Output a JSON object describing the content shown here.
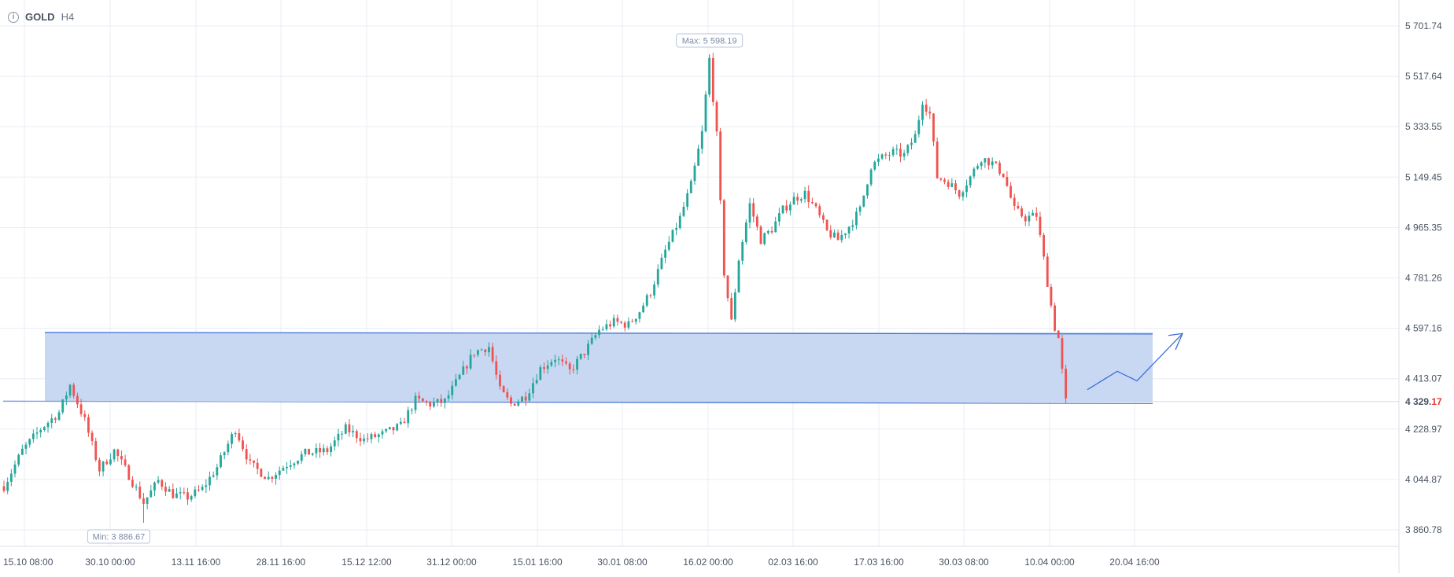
{
  "header": {
    "symbol": "GOLD",
    "timeframe": "H4",
    "info_icon": "info-icon"
  },
  "colors": {
    "up": "#26a69a",
    "down": "#ef5350",
    "grid": "#e9edf5",
    "zone_fill": "#c5d6f2",
    "zone_line": "#3a6fd6",
    "arrow": "#3a6fd6",
    "axis_text": "#4a5363",
    "current_price": "#e53935"
  },
  "chart_data": {
    "type": "candlestick",
    "instrument": "GOLD",
    "timeframe": "H4",
    "ylim": [
      3800,
      5780
    ],
    "y_ticks": [
      "5 701.74",
      "5 517.64",
      "5 333.55",
      "5 149.45",
      "4 965.35",
      "4 781.26",
      "4 597.16",
      "4 413.07",
      "4 228.97",
      "4 044.87",
      "3 860.78"
    ],
    "y_tick_values": [
      5701.74,
      5517.64,
      5333.55,
      5149.45,
      4965.35,
      4781.26,
      4597.16,
      4413.07,
      4228.97,
      4044.87,
      3860.78
    ],
    "x_ticks": [
      "15.10 08:00",
      "30.10 00:00",
      "13.11 16:00",
      "28.11 16:00",
      "15.12 12:00",
      "31.12 00:00",
      "15.01 16:00",
      "30.01 08:00",
      "16.02 00:00",
      "02.03 16:00",
      "17.03 16:00",
      "30.03 08:00",
      "10.04 00:00",
      "20.04 16:00"
    ],
    "current_price": {
      "value": 4329.17,
      "label_main": "4 329.",
      "label_tail": "17"
    },
    "max_label": "Max: 5 598.19",
    "max_value": 5598.19,
    "min_label": "Min: 3 886.67",
    "min_value": 3886.67,
    "zone": {
      "top": 4582,
      "bottom": 4328
    },
    "path_anchors": [
      [
        0,
        4020
      ],
      [
        5,
        4150
      ],
      [
        10,
        4230
      ],
      [
        15,
        4290
      ],
      [
        18,
        4390
      ],
      [
        22,
        4260
      ],
      [
        26,
        4080
      ],
      [
        30,
        4150
      ],
      [
        34,
        4060
      ],
      [
        38,
        3960
      ],
      [
        42,
        4040
      ],
      [
        46,
        3990
      ],
      [
        50,
        3980
      ],
      [
        54,
        4010
      ],
      [
        58,
        4090
      ],
      [
        63,
        4230
      ],
      [
        67,
        4100
      ],
      [
        72,
        4050
      ],
      [
        77,
        4100
      ],
      [
        82,
        4140
      ],
      [
        88,
        4150
      ],
      [
        93,
        4230
      ],
      [
        98,
        4190
      ],
      [
        103,
        4210
      ],
      [
        108,
        4240
      ],
      [
        112,
        4335
      ],
      [
        116,
        4320
      ],
      [
        120,
        4330
      ],
      [
        124,
        4420
      ],
      [
        128,
        4510
      ],
      [
        132,
        4530
      ],
      [
        135,
        4370
      ],
      [
        138,
        4320
      ],
      [
        142,
        4350
      ],
      [
        146,
        4450
      ],
      [
        150,
        4490
      ],
      [
        154,
        4440
      ],
      [
        158,
        4510
      ],
      [
        162,
        4590
      ],
      [
        166,
        4620
      ],
      [
        170,
        4610
      ],
      [
        173,
        4660
      ],
      [
        176,
        4730
      ],
      [
        180,
        4880
      ],
      [
        184,
        5000
      ],
      [
        187,
        5120
      ],
      [
        190,
        5310
      ],
      [
        192,
        5580
      ],
      [
        194,
        5300
      ],
      [
        196,
        4800
      ],
      [
        198,
        4620
      ],
      [
        200,
        4850
      ],
      [
        203,
        5050
      ],
      [
        206,
        4920
      ],
      [
        209,
        4960
      ],
      [
        212,
        5030
      ],
      [
        215,
        5070
      ],
      [
        218,
        5090
      ],
      [
        221,
        5030
      ],
      [
        224,
        4950
      ],
      [
        227,
        4920
      ],
      [
        230,
        4970
      ],
      [
        233,
        5030
      ],
      [
        236,
        5190
      ],
      [
        239,
        5220
      ],
      [
        242,
        5240
      ],
      [
        245,
        5230
      ],
      [
        248,
        5300
      ],
      [
        250,
        5430
      ],
      [
        252,
        5380
      ],
      [
        254,
        5150
      ],
      [
        257,
        5130
      ],
      [
        260,
        5090
      ],
      [
        263,
        5150
      ],
      [
        266,
        5220
      ],
      [
        269,
        5200
      ],
      [
        272,
        5160
      ],
      [
        275,
        5030
      ],
      [
        278,
        5000
      ],
      [
        281,
        5010
      ],
      [
        283,
        4850
      ],
      [
        285,
        4680
      ],
      [
        286,
        4600
      ],
      [
        287,
        4560
      ],
      [
        288,
        4440
      ],
      [
        289,
        4329
      ]
    ],
    "projection_arrow": [
      [
        4370,
        4440
      ],
      [
        4410,
        4575
      ]
    ]
  }
}
